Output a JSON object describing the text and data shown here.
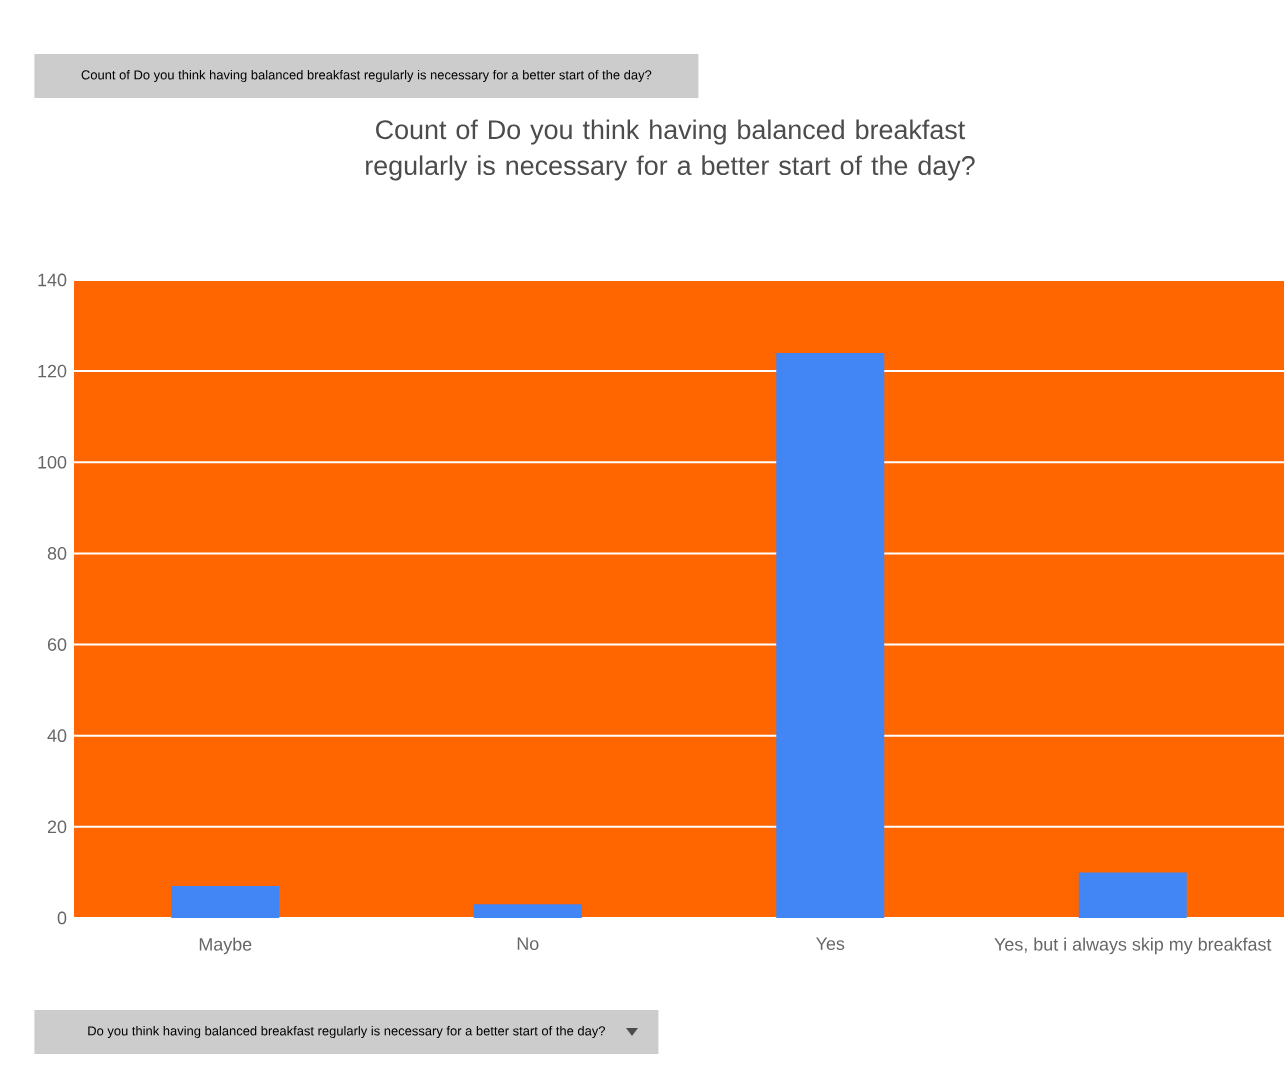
{
  "chart_data": {
    "type": "bar",
    "title": "Count of Do you think having balanced breakfast regularly is necessary for a better start of the day?",
    "annotations": [
      "Count of Do you think having balanced breakfast regularly is necessary for a better start of the day?",
      "Do you think having balanced breakfast regularly is necessary for a better start of the day?"
    ],
    "categories": [
      "Maybe",
      "No",
      "Yes",
      "Yes, but i always skip my breakfast"
    ],
    "values": [
      7,
      3,
      124,
      10
    ],
    "color": "#4285f4",
    "ylim": [
      0,
      140
    ],
    "yticks": [
      0,
      20,
      40,
      60,
      80,
      100,
      120,
      140
    ],
    "grid": "y"
  }
}
